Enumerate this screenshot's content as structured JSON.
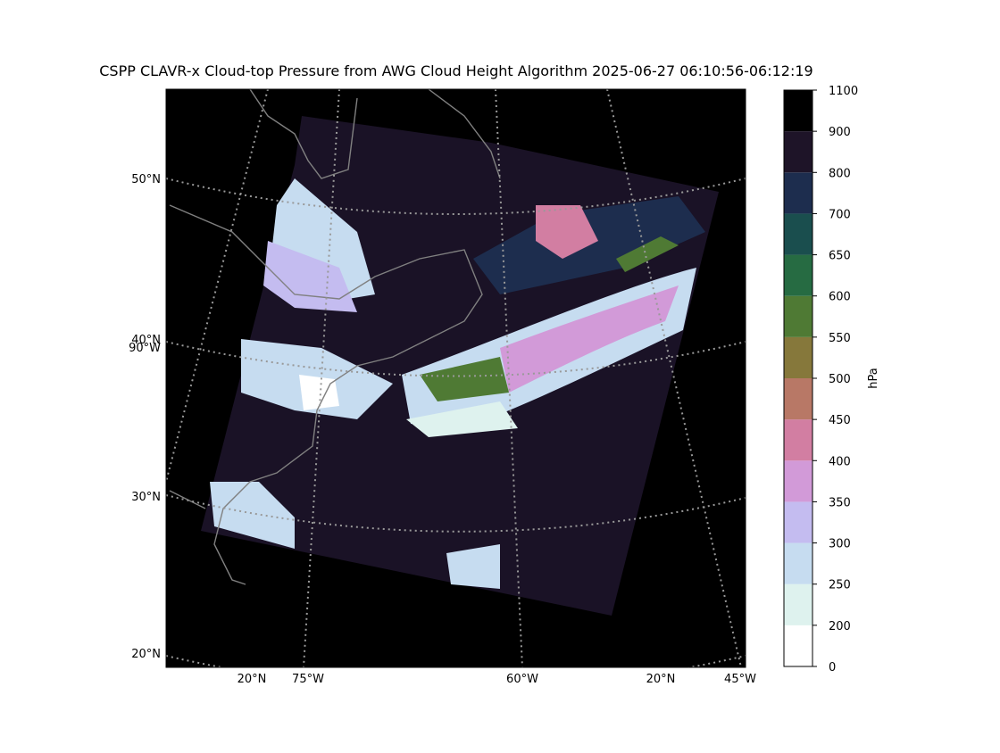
{
  "title": "CSPP CLAVR-x Cloud-top Pressure from AWG Cloud Height Algorithm 2025-06-27 06:10:56-06:12:19",
  "map": {
    "left_labels": [
      "50°N",
      "40°N",
      "90°W",
      "30°N",
      "20°N"
    ],
    "bottom_labels": [
      "20°N",
      "75°W",
      "60°W",
      "20°N",
      "45°W"
    ]
  },
  "colorbar": {
    "label": "hPa",
    "ticks": [
      0,
      200,
      250,
      300,
      350,
      400,
      450,
      500,
      550,
      600,
      650,
      700,
      800,
      900,
      1100
    ],
    "colors": [
      "#ffffff",
      "#def2ee",
      "#c6dcf0",
      "#c4bcf0",
      "#d29ad8",
      "#d27ea2",
      "#b87866",
      "#86783b",
      "#4f7a34",
      "#266b42",
      "#1a4e4e",
      "#1d2d4e",
      "#1e1428",
      "#000000"
    ]
  }
}
